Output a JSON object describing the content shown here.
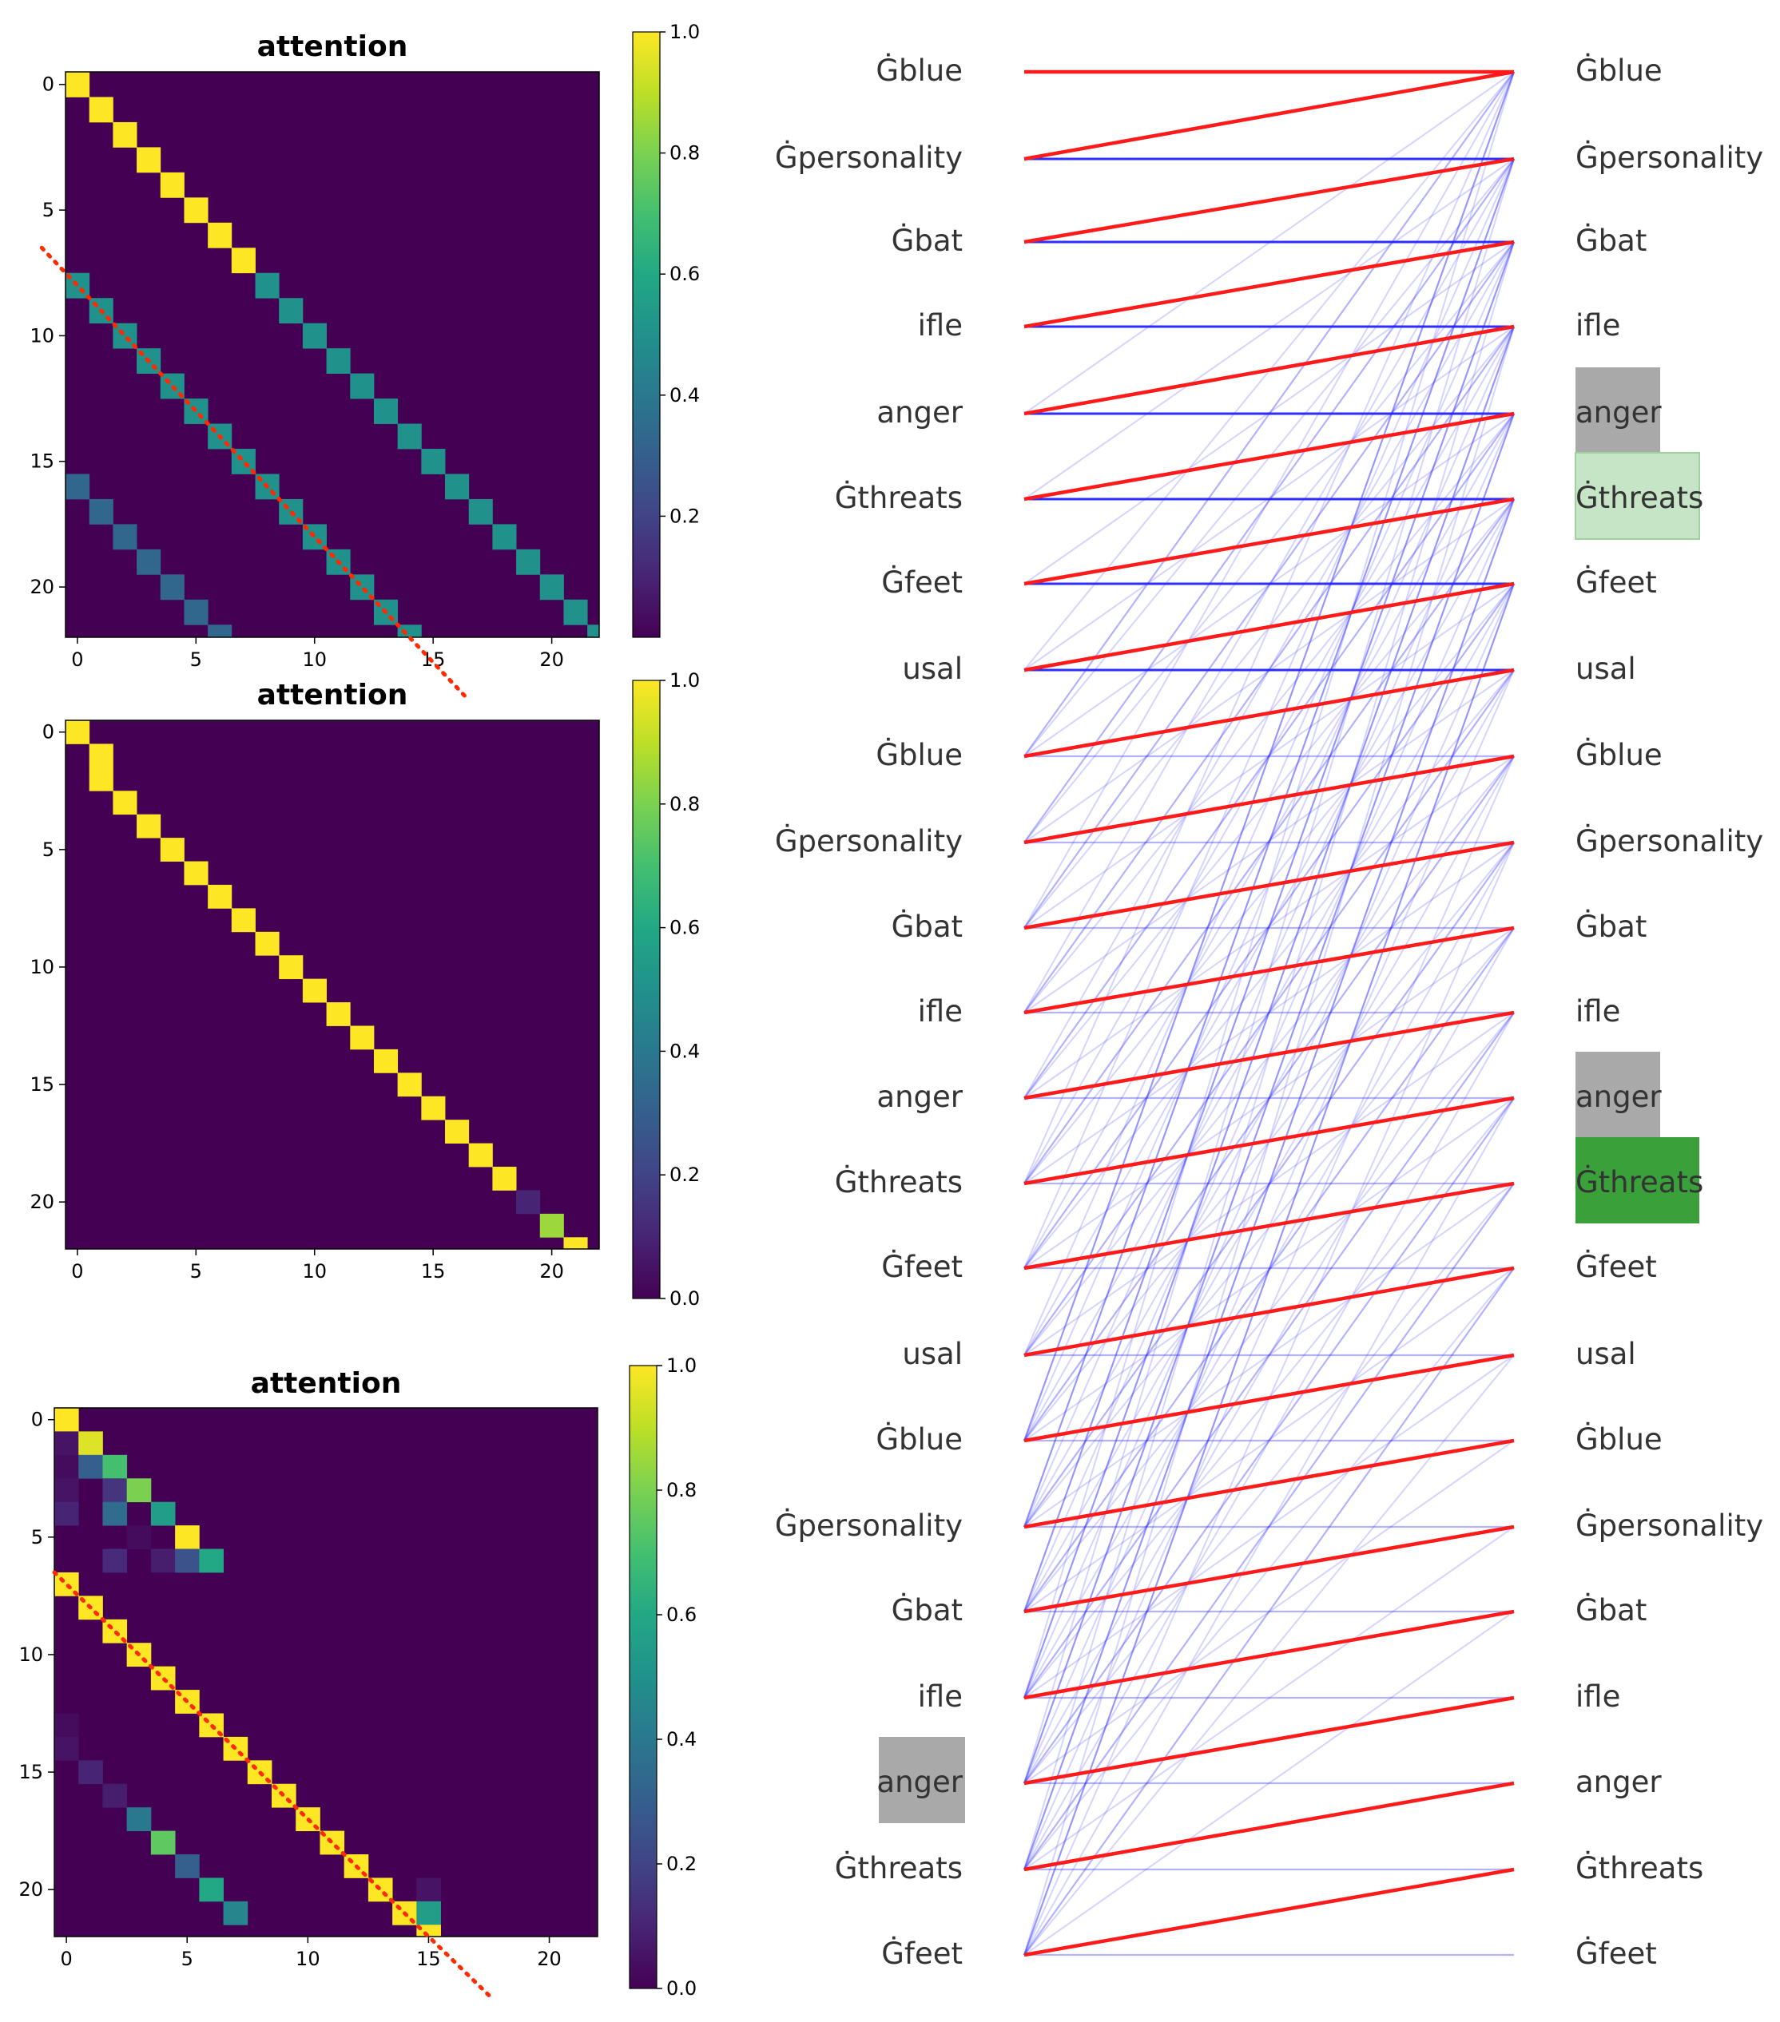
{
  "chart_data": [
    {
      "type": "heatmap",
      "title": "attention",
      "size": 23,
      "xticks": [
        0,
        5,
        10,
        15,
        20
      ],
      "yticks": [
        0,
        5,
        10,
        15,
        20
      ],
      "colorbar": {
        "min": 0.0,
        "max": 1.0,
        "ticks": [
          "0.2",
          "0.4",
          "0.6",
          "0.8",
          "1.0"
        ]
      },
      "bands": [
        {
          "row_start": 0,
          "col_offset": 0,
          "count": 8,
          "value": 1.0
        },
        {
          "row_start": 8,
          "col_offset": 0,
          "count": 15,
          "value": 0.5
        },
        {
          "row_start": 8,
          "col_offset": -8,
          "count": 15,
          "value": 0.5
        },
        {
          "row_start": 16,
          "col_offset": -16,
          "count": 7,
          "value": 0.33
        }
      ],
      "annotation": "red dotted diagonal from (-1.5, 6.5) to (16.5, 24.5)"
    },
    {
      "type": "heatmap",
      "title": "attention",
      "size": 23,
      "xticks": [
        0,
        5,
        10,
        15,
        20
      ],
      "yticks": [
        0,
        5,
        10,
        15,
        20
      ],
      "colorbar": {
        "min": 0.0,
        "max": 1.0,
        "ticks": [
          "0.0",
          "0.2",
          "0.4",
          "0.6",
          "0.8",
          "1.0"
        ]
      },
      "bands": [
        {
          "row_start": 0,
          "col_offset": 0,
          "count": 2,
          "value": 1.0
        },
        {
          "row_start": 2,
          "col_offset": -1,
          "count": 21,
          "value": 1.0
        }
      ],
      "cells": [
        [
          20,
          19,
          0.1
        ],
        [
          21,
          20,
          0.85
        ]
      ]
    },
    {
      "type": "heatmap",
      "title": "attention",
      "size": 23,
      "xticks": [
        0,
        5,
        10,
        15,
        20
      ],
      "yticks": [
        0,
        5,
        10,
        15,
        20
      ],
      "colorbar": {
        "min": 0.0,
        "max": 1.0,
        "ticks": [
          "0.0",
          "0.2",
          "0.4",
          "0.6",
          "0.8",
          "1.0"
        ]
      },
      "bands": [
        {
          "row_start": 7,
          "col_offset": -7,
          "count": 16,
          "value": 1.0
        }
      ],
      "cells": [
        [
          0,
          0,
          1.0
        ],
        [
          1,
          0,
          0.05
        ],
        [
          1,
          1,
          0.95
        ],
        [
          2,
          1,
          0.3
        ],
        [
          2,
          2,
          0.7
        ],
        [
          2,
          0,
          0.03
        ],
        [
          3,
          2,
          0.15
        ],
        [
          3,
          3,
          0.8
        ],
        [
          3,
          0,
          0.05
        ],
        [
          4,
          0,
          0.1
        ],
        [
          4,
          2,
          0.35
        ],
        [
          4,
          4,
          0.55
        ],
        [
          5,
          5,
          1.0
        ],
        [
          5,
          3,
          0.03
        ],
        [
          6,
          2,
          0.12
        ],
        [
          6,
          4,
          0.08
        ],
        [
          6,
          5,
          0.25
        ],
        [
          6,
          6,
          0.6
        ],
        [
          13,
          0,
          0.03
        ],
        [
          14,
          0,
          0.05
        ],
        [
          15,
          1,
          0.1
        ],
        [
          16,
          2,
          0.08
        ],
        [
          17,
          3,
          0.4
        ],
        [
          18,
          4,
          0.75
        ],
        [
          19,
          5,
          0.3
        ],
        [
          20,
          6,
          0.6
        ],
        [
          21,
          7,
          0.45
        ],
        [
          20,
          15,
          0.05
        ],
        [
          21,
          15,
          0.55
        ]
      ],
      "annotation": "red dotted diagonal from (-0.5, 6.5) to (17.5, 24.5)"
    },
    {
      "type": "token_alignment",
      "left_tokens": [
        "Ġblue",
        "Ġpersonality",
        "Ġbat",
        "ifle",
        "anger",
        "Ġthreats",
        "Ġfeet",
        "usal",
        "Ġblue",
        "Ġpersonality",
        "Ġbat",
        "ifle",
        "anger",
        "Ġthreats",
        "Ġfeet",
        "usal",
        "Ġblue",
        "Ġpersonality",
        "Ġbat",
        "ifle",
        "anger",
        "Ġthreats",
        "Ġfeet"
      ],
      "right_tokens": [
        "Ġblue",
        "Ġpersonality",
        "Ġbat",
        "ifle",
        "anger",
        "Ġthreats",
        "Ġfeet",
        "usal",
        "Ġblue",
        "Ġpersonality",
        "Ġbat",
        "ifle",
        "anger",
        "Ġthreats",
        "Ġfeet",
        "usal",
        "Ġblue",
        "Ġpersonality",
        "Ġbat",
        "ifle",
        "anger",
        "Ġthreats",
        "Ġfeet"
      ],
      "highlights": {
        "left": [
          {
            "index": 20,
            "color": "#a9a9a9"
          }
        ],
        "right": [
          {
            "index": 4,
            "color": "#a9a9a9"
          },
          {
            "index": 5,
            "color": "#c6e5c6"
          },
          {
            "index": 12,
            "color": "#a9a9a9"
          },
          {
            "index": 13,
            "color": "#3aa13a"
          }
        ]
      },
      "red_links": "each left token i links to right token i-1; left token 0 links to right token 0",
      "blue_links": "each left token links to right token i (horizontal) and to right tokens i-8k; dense fan"
    }
  ]
}
